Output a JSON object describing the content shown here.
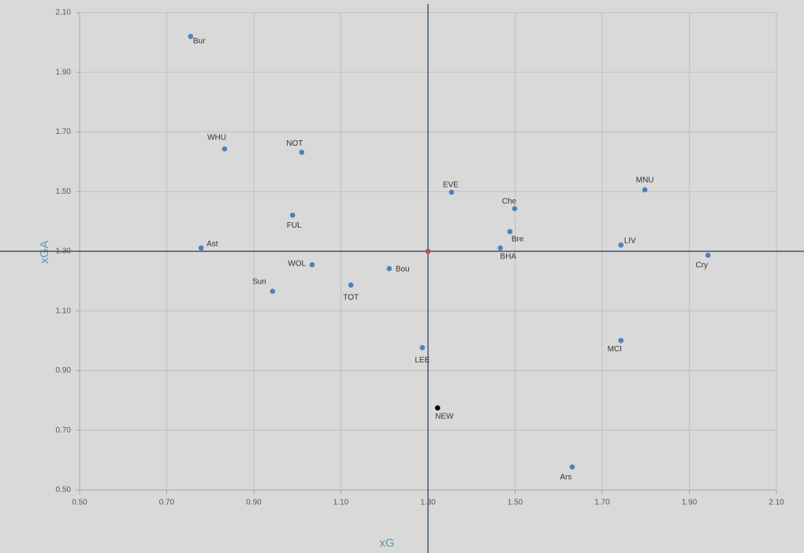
{
  "chart_data": {
    "type": "scatter",
    "x_label": "xG",
    "y_label": "xGA",
    "xlim": [
      0.5,
      2.1
    ],
    "ylim": [
      0.5,
      2.1
    ],
    "xticks": [
      {
        "value": 0.5,
        "label": "0.50"
      },
      {
        "value": 0.7,
        "label": "0.70"
      },
      {
        "value": 0.9,
        "label": "0.90"
      },
      {
        "value": 1.1,
        "label": "1.10"
      },
      {
        "value": 1.3,
        "label": "1.30"
      },
      {
        "value": 1.5,
        "label": "1.50"
      },
      {
        "value": 1.7,
        "label": "1.70"
      },
      {
        "value": 1.9,
        "label": "1.90"
      },
      {
        "value": 2.1,
        "label": "2.10"
      }
    ],
    "yticks": [
      {
        "value": 0.5,
        "label": "0.50"
      },
      {
        "value": 0.7,
        "label": "0.70"
      },
      {
        "value": 0.9,
        "label": "0.90"
      },
      {
        "value": 1.1,
        "label": "1.10"
      },
      {
        "value": 1.3,
        "label": "1.30"
      },
      {
        "value": 1.5,
        "label": "1.50"
      },
      {
        "value": 1.7,
        "label": "1.70"
      },
      {
        "value": 1.9,
        "label": "1.90"
      },
      {
        "value": 2.1,
        "label": "2.10"
      }
    ],
    "grid": true,
    "color": "#4f81bd",
    "reference_x": 1.3,
    "reference_y": 1.3,
    "reference_color": "#1f3b5a",
    "points": [
      {
        "label": "Bur",
        "x": 0.755,
        "y": 2.02
      },
      {
        "label": "WHU",
        "x": 0.833,
        "y": 1.643
      },
      {
        "label": "NOT",
        "x": 1.01,
        "y": 1.632
      },
      {
        "label": "FUL",
        "x": 0.989,
        "y": 1.421
      },
      {
        "label": "Ast",
        "x": 0.779,
        "y": 1.311
      },
      {
        "label": "WOL",
        "x": 1.034,
        "y": 1.255
      },
      {
        "label": "Sun",
        "x": 0.943,
        "y": 1.166
      },
      {
        "label": "TOT",
        "x": 1.123,
        "y": 1.187
      },
      {
        "label": "Bou",
        "x": 1.211,
        "y": 1.242
      },
      {
        "label": "LEE",
        "x": 1.287,
        "y": 0.977
      },
      {
        "label": "NEW",
        "x": 1.322,
        "y": 0.775,
        "color": "#000000"
      },
      {
        "label": "EVE",
        "x": 1.354,
        "y": 1.498
      },
      {
        "label": "Che",
        "x": 1.499,
        "y": 1.443
      },
      {
        "label": "Bre",
        "x": 1.488,
        "y": 1.366
      },
      {
        "label": "BHA",
        "x": 1.466,
        "y": 1.311
      },
      {
        "label": "LIV",
        "x": 1.743,
        "y": 1.321
      },
      {
        "label": "MNU",
        "x": 1.798,
        "y": 1.506
      },
      {
        "label": "Cry",
        "x": 1.943,
        "y": 1.287
      },
      {
        "label": "MCI",
        "x": 1.743,
        "y": 1.001
      },
      {
        "label": "Ars",
        "x": 1.631,
        "y": 0.577
      },
      {
        "label": null,
        "x": 1.3,
        "y": 1.3,
        "color": "#c0504d"
      }
    ]
  }
}
